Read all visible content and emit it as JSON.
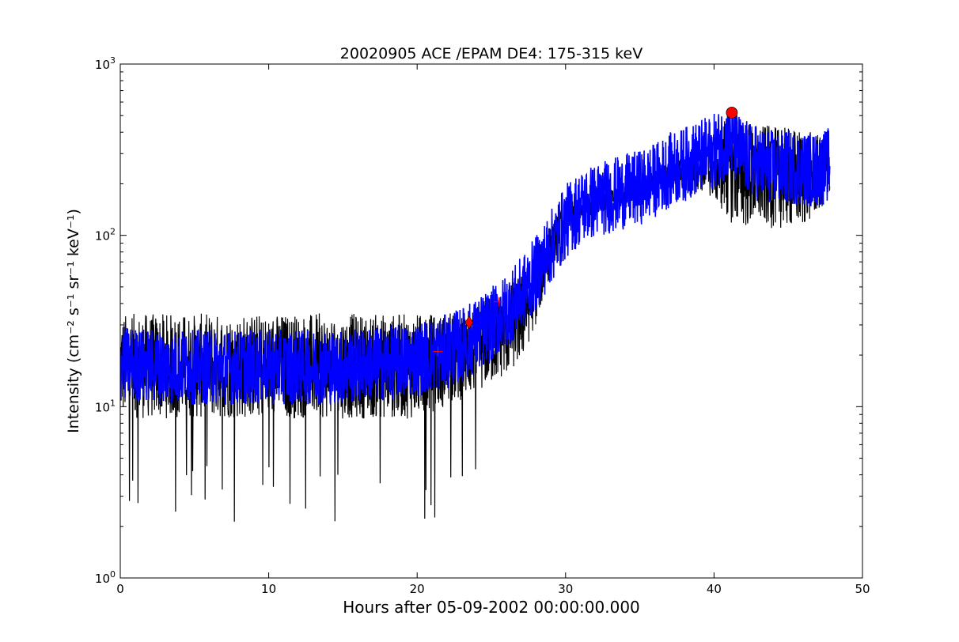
{
  "chart_data": {
    "type": "line",
    "title": "20020905 ACE /EPAM DE4: 175-315 keV",
    "xlabel": "Hours after 05-09-2002 00:00:00.000",
    "ylabel": "Intensity (cm⁻² s⁻¹ sr⁻¹ keV⁻¹)",
    "xlim": [
      0,
      50
    ],
    "ylim": [
      1,
      1000
    ],
    "yscale": "log",
    "grid": false,
    "x_ticks": [
      0,
      10,
      20,
      30,
      40,
      50
    ],
    "y_ticks": [
      {
        "base": "10",
        "exp": "0",
        "value": 1
      },
      {
        "base": "10",
        "exp": "1",
        "value": 10
      },
      {
        "base": "10",
        "exp": "2",
        "value": 100
      },
      {
        "base": "10",
        "exp": "3",
        "value": 1000
      }
    ],
    "colors": {
      "raw": "#000000",
      "smoothed": "#0000ff",
      "markers": "#ff0000"
    },
    "series": [
      {
        "role": "raw",
        "x_start": 0,
        "x_end": 47.8,
        "envelope": {
          "x": [
            0,
            5,
            10,
            15,
            20,
            22,
            24,
            26,
            27,
            28,
            29,
            30,
            32,
            34,
            36,
            38,
            40,
            41,
            42,
            44,
            46,
            47.8
          ],
          "upper": [
            35,
            35,
            35,
            35,
            35,
            35,
            40,
            50,
            60,
            80,
            115,
            155,
            175,
            195,
            240,
            290,
            380,
            560,
            470,
            430,
            420,
            360
          ],
          "lower": [
            8.5,
            8.5,
            8.5,
            8.5,
            8.5,
            10,
            12,
            15,
            18,
            30,
            60,
            110,
            135,
            150,
            190,
            210,
            160,
            120,
            110,
            110,
            110,
            160
          ]
        }
      },
      {
        "role": "smoothed",
        "x": [
          0,
          3,
          6,
          9,
          12,
          15,
          18,
          20,
          22,
          23,
          24,
          25,
          26,
          27,
          28,
          29,
          30,
          31,
          32,
          33,
          34,
          35,
          36,
          37,
          38,
          39,
          40,
          41,
          42,
          43,
          44,
          45,
          46,
          47,
          47.8
        ],
        "y": [
          18,
          17,
          17,
          17,
          17,
          17,
          18,
          19,
          21,
          23,
          26,
          30,
          36,
          45,
          60,
          85,
          120,
          145,
          160,
          170,
          180,
          190,
          210,
          240,
          260,
          285,
          310,
          360,
          290,
          260,
          250,
          250,
          245,
          240,
          260
        ],
        "spread": 0.22
      }
    ],
    "markers": [
      {
        "shape": "plus",
        "x": 21.4,
        "y": 21
      },
      {
        "shape": "diamond",
        "x": 23.5,
        "y": 31
      },
      {
        "shape": "plus",
        "x": 25.5,
        "y": 41
      },
      {
        "shape": "circle",
        "x": 41.2,
        "y": 520
      }
    ]
  }
}
